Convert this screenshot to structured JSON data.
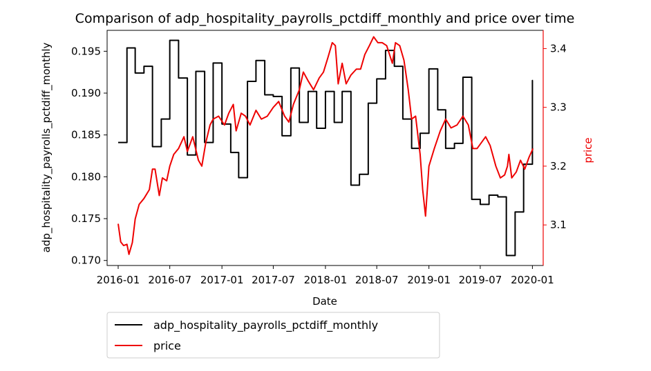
{
  "chart_data": {
    "type": "line",
    "title": "Comparison of adp_hospitality_payrolls_pctdiff_monthly and price over time",
    "xlabel": "Date",
    "ylabel_left": "adp_hospitality_payrolls_pctdiff_monthly",
    "ylabel_right": "price",
    "xlim": [
      "2015-11-23",
      "2020-02-08"
    ],
    "ylim_left": [
      0.1694,
      0.1975
    ],
    "ylim_right": [
      3.031,
      3.431
    ],
    "x_ticks": [
      {
        "date": "2016-01-01",
        "label": "2016-01"
      },
      {
        "date": "2016-07-01",
        "label": "2016-07"
      },
      {
        "date": "2017-01-01",
        "label": "2017-01"
      },
      {
        "date": "2017-07-01",
        "label": "2017-07"
      },
      {
        "date": "2018-01-01",
        "label": "2018-01"
      },
      {
        "date": "2018-07-01",
        "label": "2018-07"
      },
      {
        "date": "2019-01-01",
        "label": "2019-01"
      },
      {
        "date": "2019-07-01",
        "label": "2019-07"
      },
      {
        "date": "2020-01-01",
        "label": "2020-01"
      }
    ],
    "y_ticks_left": [
      {
        "value": 0.17,
        "label": "0.170"
      },
      {
        "value": 0.175,
        "label": "0.175"
      },
      {
        "value": 0.18,
        "label": "0.180"
      },
      {
        "value": 0.185,
        "label": "0.185"
      },
      {
        "value": 0.19,
        "label": "0.190"
      },
      {
        "value": 0.195,
        "label": "0.195"
      }
    ],
    "y_ticks_right": [
      {
        "value": 3.1,
        "label": "3.1"
      },
      {
        "value": 3.2,
        "label": "3.2"
      },
      {
        "value": 3.3,
        "label": "3.3"
      },
      {
        "value": 3.4,
        "label": "3.4"
      }
    ],
    "grid": false,
    "legend_placement": "below-left",
    "series": [
      {
        "name": "adp_hospitality_payrolls_pctdiff_monthly",
        "axis": "left",
        "color": "#000000",
        "style": "step",
        "points": [
          [
            "2016-01-01",
            0.1841
          ],
          [
            "2016-02-01",
            0.1954
          ],
          [
            "2016-03-01",
            0.1924
          ],
          [
            "2016-04-01",
            0.1932
          ],
          [
            "2016-05-01",
            0.1836
          ],
          [
            "2016-06-01",
            0.1869
          ],
          [
            "2016-07-01",
            0.1963
          ],
          [
            "2016-08-01",
            0.1918
          ],
          [
            "2016-09-01",
            0.1826
          ],
          [
            "2016-10-01",
            0.1926
          ],
          [
            "2016-11-01",
            0.1841
          ],
          [
            "2016-12-01",
            0.1936
          ],
          [
            "2017-01-01",
            0.1863
          ],
          [
            "2017-02-01",
            0.1829
          ],
          [
            "2017-03-01",
            0.1799
          ],
          [
            "2017-04-01",
            0.1914
          ],
          [
            "2017-05-01",
            0.1939
          ],
          [
            "2017-06-01",
            0.1898
          ],
          [
            "2017-07-01",
            0.1896
          ],
          [
            "2017-08-01",
            0.1849
          ],
          [
            "2017-09-01",
            0.193
          ],
          [
            "2017-10-01",
            0.1865
          ],
          [
            "2017-11-01",
            0.1902
          ],
          [
            "2017-12-01",
            0.1858
          ],
          [
            "2018-01-01",
            0.1902
          ],
          [
            "2018-02-01",
            0.1865
          ],
          [
            "2018-03-01",
            0.1902
          ],
          [
            "2018-04-01",
            0.179
          ],
          [
            "2018-05-01",
            0.1803
          ],
          [
            "2018-06-01",
            0.1888
          ],
          [
            "2018-07-01",
            0.1917
          ],
          [
            "2018-08-01",
            0.1951
          ],
          [
            "2018-09-01",
            0.1932
          ],
          [
            "2018-10-01",
            0.1869
          ],
          [
            "2018-11-01",
            0.1834
          ],
          [
            "2018-12-01",
            0.1852
          ],
          [
            "2019-01-01",
            0.1929
          ],
          [
            "2019-02-01",
            0.188
          ],
          [
            "2019-03-01",
            0.1834
          ],
          [
            "2019-04-01",
            0.184
          ],
          [
            "2019-05-01",
            0.1919
          ],
          [
            "2019-06-01",
            0.1773
          ],
          [
            "2019-07-01",
            0.1767
          ],
          [
            "2019-08-01",
            0.1778
          ],
          [
            "2019-09-01",
            0.1776
          ],
          [
            "2019-10-01",
            0.1706
          ],
          [
            "2019-11-01",
            0.1758
          ],
          [
            "2019-12-01",
            0.1815
          ],
          [
            "2020-01-01",
            0.1915
          ],
          [
            "2020-01-03",
            0.1915
          ]
        ]
      },
      {
        "name": "price",
        "axis": "right",
        "color": "#ee0000",
        "style": "line",
        "points": [
          [
            "2016-01-01",
            3.102
          ],
          [
            "2016-01-10",
            3.071
          ],
          [
            "2016-01-20",
            3.065
          ],
          [
            "2016-02-01",
            3.067
          ],
          [
            "2016-02-08",
            3.05
          ],
          [
            "2016-02-20",
            3.07
          ],
          [
            "2016-03-01",
            3.11
          ],
          [
            "2016-03-15",
            3.135
          ],
          [
            "2016-04-01",
            3.145
          ],
          [
            "2016-04-20",
            3.16
          ],
          [
            "2016-05-01",
            3.195
          ],
          [
            "2016-05-10",
            3.195
          ],
          [
            "2016-05-25",
            3.15
          ],
          [
            "2016-06-05",
            3.18
          ],
          [
            "2016-06-20",
            3.175
          ],
          [
            "2016-07-01",
            3.2
          ],
          [
            "2016-07-15",
            3.22
          ],
          [
            "2016-08-01",
            3.23
          ],
          [
            "2016-08-20",
            3.25
          ],
          [
            "2016-09-01",
            3.225
          ],
          [
            "2016-09-20",
            3.25
          ],
          [
            "2016-10-10",
            3.21
          ],
          [
            "2016-10-22",
            3.2
          ],
          [
            "2016-11-05",
            3.24
          ],
          [
            "2016-11-20",
            3.27
          ],
          [
            "2016-12-01",
            3.28
          ],
          [
            "2016-12-20",
            3.285
          ],
          [
            "2017-01-10",
            3.27
          ],
          [
            "2017-01-25",
            3.29
          ],
          [
            "2017-02-10",
            3.305
          ],
          [
            "2017-02-20",
            3.26
          ],
          [
            "2017-03-10",
            3.29
          ],
          [
            "2017-03-25",
            3.285
          ],
          [
            "2017-04-10",
            3.27
          ],
          [
            "2017-05-01",
            3.295
          ],
          [
            "2017-05-20",
            3.28
          ],
          [
            "2017-06-10",
            3.285
          ],
          [
            "2017-07-01",
            3.3
          ],
          [
            "2017-07-20",
            3.31
          ],
          [
            "2017-08-10",
            3.285
          ],
          [
            "2017-08-25",
            3.275
          ],
          [
            "2017-09-10",
            3.305
          ],
          [
            "2017-10-01",
            3.33
          ],
          [
            "2017-10-15",
            3.36
          ],
          [
            "2017-11-01",
            3.345
          ],
          [
            "2017-11-20",
            3.33
          ],
          [
            "2017-12-10",
            3.35
          ],
          [
            "2017-12-25",
            3.36
          ],
          [
            "2018-01-10",
            3.385
          ],
          [
            "2018-01-25",
            3.41
          ],
          [
            "2018-02-05",
            3.405
          ],
          [
            "2018-02-15",
            3.34
          ],
          [
            "2018-03-01",
            3.375
          ],
          [
            "2018-03-15",
            3.34
          ],
          [
            "2018-04-01",
            3.355
          ],
          [
            "2018-04-20",
            3.365
          ],
          [
            "2018-05-05",
            3.365
          ],
          [
            "2018-05-20",
            3.39
          ],
          [
            "2018-06-05",
            3.405
          ],
          [
            "2018-06-20",
            3.42
          ],
          [
            "2018-07-05",
            3.41
          ],
          [
            "2018-07-20",
            3.41
          ],
          [
            "2018-08-05",
            3.405
          ],
          [
            "2018-08-25",
            3.375
          ],
          [
            "2018-09-05",
            3.41
          ],
          [
            "2018-09-20",
            3.405
          ],
          [
            "2018-10-05",
            3.38
          ],
          [
            "2018-10-20",
            3.33
          ],
          [
            "2018-11-01",
            3.28
          ],
          [
            "2018-11-15",
            3.285
          ],
          [
            "2018-12-01",
            3.22
          ],
          [
            "2018-12-10",
            3.16
          ],
          [
            "2018-12-20",
            3.115
          ],
          [
            "2019-01-01",
            3.2
          ],
          [
            "2019-01-20",
            3.23
          ],
          [
            "2019-02-10",
            3.26
          ],
          [
            "2019-03-01",
            3.28
          ],
          [
            "2019-03-20",
            3.265
          ],
          [
            "2019-04-10",
            3.27
          ],
          [
            "2019-05-01",
            3.285
          ],
          [
            "2019-05-20",
            3.27
          ],
          [
            "2019-06-05",
            3.23
          ],
          [
            "2019-06-20",
            3.23
          ],
          [
            "2019-07-05",
            3.24
          ],
          [
            "2019-07-20",
            3.25
          ],
          [
            "2019-08-05",
            3.235
          ],
          [
            "2019-08-25",
            3.2
          ],
          [
            "2019-09-10",
            3.18
          ],
          [
            "2019-09-25",
            3.185
          ],
          [
            "2019-10-05",
            3.2
          ],
          [
            "2019-10-10",
            3.22
          ],
          [
            "2019-10-20",
            3.18
          ],
          [
            "2019-11-05",
            3.19
          ],
          [
            "2019-11-20",
            3.21
          ],
          [
            "2019-12-05",
            3.195
          ],
          [
            "2019-12-20",
            3.215
          ],
          [
            "2020-01-03",
            3.23
          ]
        ]
      }
    ]
  }
}
